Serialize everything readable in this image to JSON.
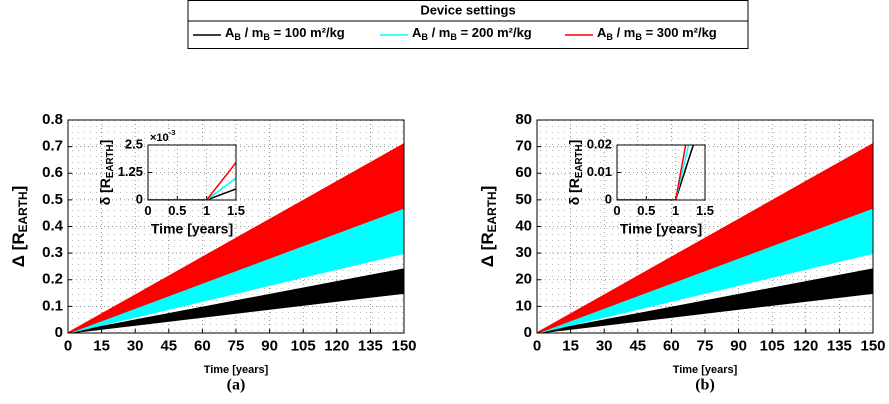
{
  "legend": {
    "title": "Device settings"
  },
  "chart_data": [
    {
      "type": "line",
      "caption": "(a)",
      "x_label": "Time [years]",
      "y_label": [
        "Δ [R",
        "EARTH",
        "]"
      ],
      "x": [
        0,
        150
      ],
      "xlim": [
        0,
        150
      ],
      "xticks": [
        0,
        15,
        30,
        45,
        60,
        75,
        90,
        105,
        120,
        135,
        150
      ],
      "ylim": [
        0,
        0.8
      ],
      "yticks": [
        0,
        0.1,
        0.2,
        0.3,
        0.4,
        0.5,
        0.6,
        0.7,
        0.8
      ],
      "grid": true,
      "series": [
        {
          "name": [
            "A",
            "B",
            " / m",
            "B",
            " = 100 m²/kg"
          ],
          "color": "#000000",
          "values": [
            0,
            0.24
          ],
          "lower": [
            0,
            0.15
          ]
        },
        {
          "name": [
            "A",
            "B",
            " / m",
            "B",
            " = 200 m²/kg"
          ],
          "color": "#00ffff",
          "values": [
            0,
            0.47
          ],
          "lower": [
            0,
            0.3
          ]
        },
        {
          "name": [
            "A",
            "B",
            " / m",
            "B",
            " = 300 m²/kg"
          ],
          "color": "#ff0000",
          "values": [
            0,
            0.71
          ],
          "lower": [
            0,
            0.47
          ]
        }
      ],
      "inset": {
        "type": "line",
        "x_label": "Time [years]",
        "y_label": [
          "δ [R",
          "EARTH",
          "]"
        ],
        "xlim": [
          0,
          1.5
        ],
        "xticks": [
          0,
          0.5,
          1,
          1.5
        ],
        "ylim": [
          0,
          0.0025
        ],
        "yticks": [
          0,
          {
            "value": 0.00125,
            "label": "1.25"
          },
          {
            "value": 0.0025,
            "label": "2.5"
          }
        ],
        "exponent": [
          "×10",
          "-3"
        ],
        "grid": true,
        "series": [
          {
            "color": "#000000",
            "x": [
              0,
              1,
              1.5
            ],
            "values": [
              0,
              0,
              0.0005
            ]
          },
          {
            "color": "#00ffff",
            "x": [
              0,
              1,
              1.5
            ],
            "values": [
              0,
              0,
              0.001
            ]
          },
          {
            "color": "#ff0000",
            "x": [
              0,
              1,
              1.5
            ],
            "values": [
              0,
              0,
              0.0017
            ]
          }
        ]
      }
    },
    {
      "type": "line",
      "caption": "(b)",
      "x_label": "Time [years]",
      "y_label": [
        "Δ [R",
        "EARTH",
        "]"
      ],
      "x": [
        0,
        150
      ],
      "xlim": [
        0,
        150
      ],
      "xticks": [
        0,
        15,
        30,
        45,
        60,
        75,
        90,
        105,
        120,
        135,
        150
      ],
      "ylim": [
        0,
        80
      ],
      "yticks": [
        0,
        10,
        20,
        30,
        40,
        50,
        60,
        70,
        80
      ],
      "grid": true,
      "series": [
        {
          "color": "#000000",
          "values": [
            0,
            24
          ],
          "lower": [
            0,
            15
          ]
        },
        {
          "color": "#00ffff",
          "values": [
            0,
            47
          ],
          "lower": [
            0,
            30
          ]
        },
        {
          "color": "#ff0000",
          "values": [
            0,
            71
          ],
          "lower": [
            0,
            47
          ]
        }
      ],
      "inset": {
        "type": "line",
        "x_label": "Time [years]",
        "y_label": [
          "δ [R",
          "EARTH",
          "]"
        ],
        "xlim": [
          0,
          1.5
        ],
        "xticks": [
          0,
          0.5,
          1,
          1.5
        ],
        "ylim": [
          0,
          0.02
        ],
        "yticks": [
          0,
          0.01,
          0.02
        ],
        "grid": true,
        "series": [
          {
            "color": "#000000",
            "x": [
              0,
              1,
              1.3
            ],
            "values": [
              0,
              0,
              0.02
            ]
          },
          {
            "color": "#00ffff",
            "x": [
              0,
              1,
              1.22
            ],
            "values": [
              0,
              0,
              0.02
            ]
          },
          {
            "color": "#ff0000",
            "x": [
              0,
              1,
              1.17
            ],
            "values": [
              0,
              0,
              0.02
            ]
          }
        ]
      }
    }
  ]
}
